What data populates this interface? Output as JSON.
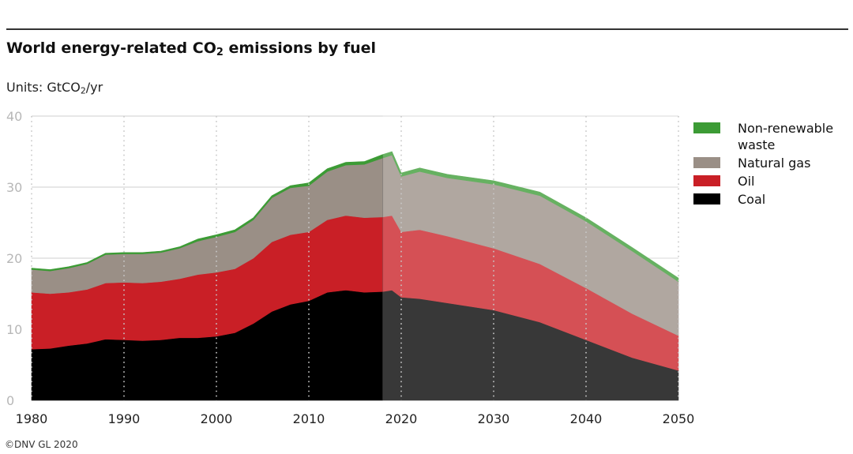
{
  "header": {
    "title_prefix": "World energy-related CO",
    "title_sub": "2",
    "title_suffix": " emissions by fuel",
    "units_prefix": "Units: GtCO",
    "units_sub": "2",
    "units_suffix": "/yr"
  },
  "footer": {
    "copyright": "©DNV GL 2020"
  },
  "legend": [
    {
      "label": "Non-renewable waste",
      "color": "#3c9b35"
    },
    {
      "label": "Natural gas",
      "color": "#9a8f86"
    },
    {
      "label": "Oil",
      "color": "#c91f26"
    },
    {
      "label": "Coal",
      "color": "#000000"
    }
  ],
  "chart_data": {
    "type": "area",
    "stacked": true,
    "title": "World energy-related CO2 emissions by fuel",
    "ylabel": "Units: GtCO2/yr",
    "xlim": [
      1980,
      2050
    ],
    "ylim": [
      0,
      40
    ],
    "x_ticks": [
      1980,
      1990,
      2000,
      2010,
      2020,
      2030,
      2040,
      2050
    ],
    "y_ticks": [
      0,
      10,
      20,
      30,
      40
    ],
    "history_end_year": 2018,
    "x": [
      1980,
      1982,
      1984,
      1986,
      1988,
      1990,
      1992,
      1994,
      1996,
      1998,
      2000,
      2002,
      2004,
      2006,
      2008,
      2010,
      2012,
      2014,
      2016,
      2018,
      2019,
      2020,
      2022,
      2025,
      2030,
      2035,
      2040,
      2045,
      2050
    ],
    "series": [
      {
        "name": "Coal",
        "color": "#000000",
        "values": [
          7.2,
          7.3,
          7.7,
          8.0,
          8.6,
          8.5,
          8.4,
          8.5,
          8.8,
          8.8,
          9.0,
          9.5,
          10.8,
          12.5,
          13.5,
          14.0,
          15.2,
          15.5,
          15.2,
          15.3,
          15.5,
          14.5,
          14.3,
          13.7,
          12.7,
          11.0,
          8.5,
          6.0,
          4.2
        ]
      },
      {
        "name": "Oil",
        "color": "#c91f26",
        "values": [
          8.0,
          7.7,
          7.5,
          7.6,
          7.9,
          8.1,
          8.1,
          8.2,
          8.3,
          8.9,
          9.0,
          9.0,
          9.2,
          9.8,
          9.8,
          9.7,
          10.2,
          10.5,
          10.5,
          10.5,
          10.5,
          9.2,
          9.7,
          9.4,
          8.7,
          8.2,
          7.3,
          6.2,
          4.9
        ]
      },
      {
        "name": "Natural gas",
        "color": "#9a8f86",
        "values": [
          3.2,
          3.2,
          3.4,
          3.6,
          4.0,
          4.0,
          4.1,
          4.1,
          4.3,
          4.7,
          5.0,
          5.2,
          5.4,
          6.2,
          6.6,
          6.5,
          6.8,
          7.1,
          7.5,
          8.3,
          8.5,
          7.8,
          8.2,
          8.2,
          9.0,
          9.6,
          9.4,
          8.8,
          7.6
        ]
      },
      {
        "name": "Non-renewable waste",
        "color": "#3c9b35",
        "values": [
          0.2,
          0.2,
          0.2,
          0.2,
          0.2,
          0.2,
          0.2,
          0.2,
          0.2,
          0.3,
          0.3,
          0.3,
          0.3,
          0.3,
          0.3,
          0.4,
          0.4,
          0.4,
          0.4,
          0.5,
          0.5,
          0.5,
          0.5,
          0.5,
          0.5,
          0.5,
          0.5,
          0.5,
          0.5
        ]
      }
    ],
    "projection_colors": {
      "Coal": "#111111",
      "Oil": "#d64b51",
      "Natural gas": "#aea6a0",
      "Non-renewable waste": "#5fb14a"
    }
  }
}
